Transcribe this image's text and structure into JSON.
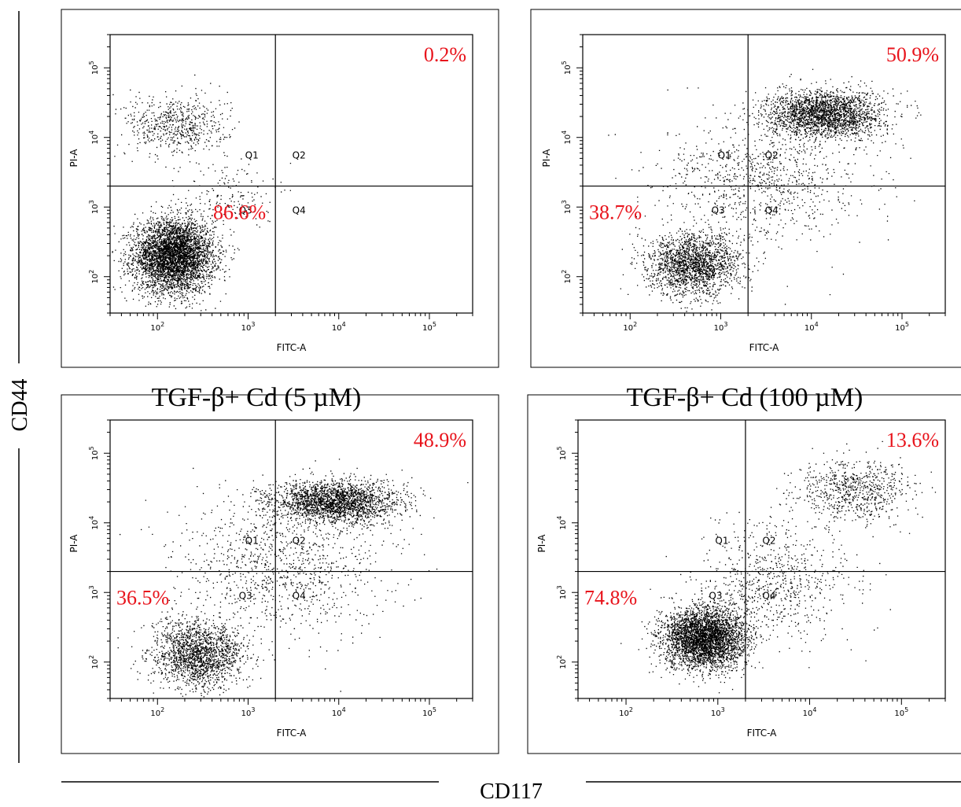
{
  "figure": {
    "shared_y_label": "CD44",
    "shared_x_label": "CD117"
  },
  "colors": {
    "percent": "#e8141c",
    "dots": "#000000",
    "frame": "#000000"
  },
  "chart_data": [
    {
      "type": "scatter",
      "title": "",
      "xlabel": "FITC-A",
      "ylabel": "PI-A",
      "x_scale": "log",
      "y_scale": "log",
      "xlim": [
        30,
        300000
      ],
      "ylim": [
        30,
        300000
      ],
      "x_ticks": [
        100,
        1000,
        10000,
        100000
      ],
      "y_ticks": [
        100,
        1000,
        10000,
        100000
      ],
      "gate": {
        "x": 2000,
        "y": 2000
      },
      "quadrant_labels": [
        "Q1",
        "Q2",
        "Q3",
        "Q4"
      ],
      "percentages": {
        "Q1": "",
        "Q2": "0.2%",
        "Q3": "86.6%",
        "Q4": ""
      },
      "populations": [
        {
          "x": 150,
          "y": 200,
          "sx": 0.22,
          "sy": 0.26,
          "share": 0.85
        },
        {
          "x": 160,
          "y": 15000,
          "sx": 0.28,
          "sy": 0.22,
          "share": 0.12
        },
        {
          "x": 600,
          "y": 1500,
          "sx": 0.25,
          "sy": 0.25,
          "share": 0.03
        }
      ]
    },
    {
      "type": "scatter",
      "title": "",
      "xlabel": "FITC-A",
      "ylabel": "PI-A",
      "x_scale": "log",
      "y_scale": "log",
      "xlim": [
        30,
        300000
      ],
      "ylim": [
        30,
        300000
      ],
      "x_ticks": [
        100,
        1000,
        10000,
        100000
      ],
      "y_ticks": [
        100,
        1000,
        10000,
        100000
      ],
      "gate": {
        "x": 2000,
        "y": 2000
      },
      "quadrant_labels": [
        "Q1",
        "Q2",
        "Q3",
        "Q4"
      ],
      "percentages": {
        "Q1": "",
        "Q2": "50.9%",
        "Q3": "38.7%",
        "Q4": ""
      },
      "populations": [
        {
          "x": 14000,
          "y": 22000,
          "sx": 0.32,
          "sy": 0.17,
          "share": 0.45
        },
        {
          "x": 500,
          "y": 150,
          "sx": 0.25,
          "sy": 0.22,
          "share": 0.37
        },
        {
          "x": 3000,
          "y": 2500,
          "sx": 0.55,
          "sy": 0.45,
          "share": 0.18
        }
      ]
    },
    {
      "type": "scatter",
      "title": "TGF-β+ Cd (5 µM)",
      "xlabel": "FITC-A",
      "ylabel": "PI-A",
      "x_scale": "log",
      "y_scale": "log",
      "xlim": [
        30,
        300000
      ],
      "ylim": [
        30,
        300000
      ],
      "x_ticks": [
        100,
        1000,
        10000,
        100000
      ],
      "y_ticks": [
        100,
        1000,
        10000,
        100000
      ],
      "gate": {
        "x": 2000,
        "y": 2000
      },
      "quadrant_labels": [
        "Q1",
        "Q2",
        "Q3",
        "Q4"
      ],
      "percentages": {
        "Q1": "",
        "Q2": "48.9%",
        "Q3": "36.5%",
        "Q4": ""
      },
      "populations": [
        {
          "x": 9000,
          "y": 20000,
          "sx": 0.35,
          "sy": 0.15,
          "share": 0.45
        },
        {
          "x": 280,
          "y": 130,
          "sx": 0.25,
          "sy": 0.24,
          "share": 0.35
        },
        {
          "x": 2500,
          "y": 2500,
          "sx": 0.6,
          "sy": 0.5,
          "share": 0.2
        }
      ]
    },
    {
      "type": "scatter",
      "title": "TGF-β+ Cd (100 µM)",
      "xlabel": "FITC-A",
      "ylabel": "PI-A",
      "x_scale": "log",
      "y_scale": "log",
      "xlim": [
        30,
        300000
      ],
      "ylim": [
        30,
        300000
      ],
      "x_ticks": [
        100,
        1000,
        10000,
        100000
      ],
      "y_ticks": [
        100,
        1000,
        10000,
        100000
      ],
      "gate": {
        "x": 2000,
        "y": 2000
      },
      "quadrant_labels": [
        "Q1",
        "Q2",
        "Q3",
        "Q4"
      ],
      "percentages": {
        "Q1": "",
        "Q2": "13.6%",
        "Q3": "74.8%",
        "Q4": ""
      },
      "populations": [
        {
          "x": 700,
          "y": 220,
          "sx": 0.22,
          "sy": 0.22,
          "share": 0.72
        },
        {
          "x": 30000,
          "y": 30000,
          "sx": 0.3,
          "sy": 0.22,
          "share": 0.14
        },
        {
          "x": 4000,
          "y": 1500,
          "sx": 0.45,
          "sy": 0.4,
          "share": 0.14
        }
      ]
    }
  ]
}
